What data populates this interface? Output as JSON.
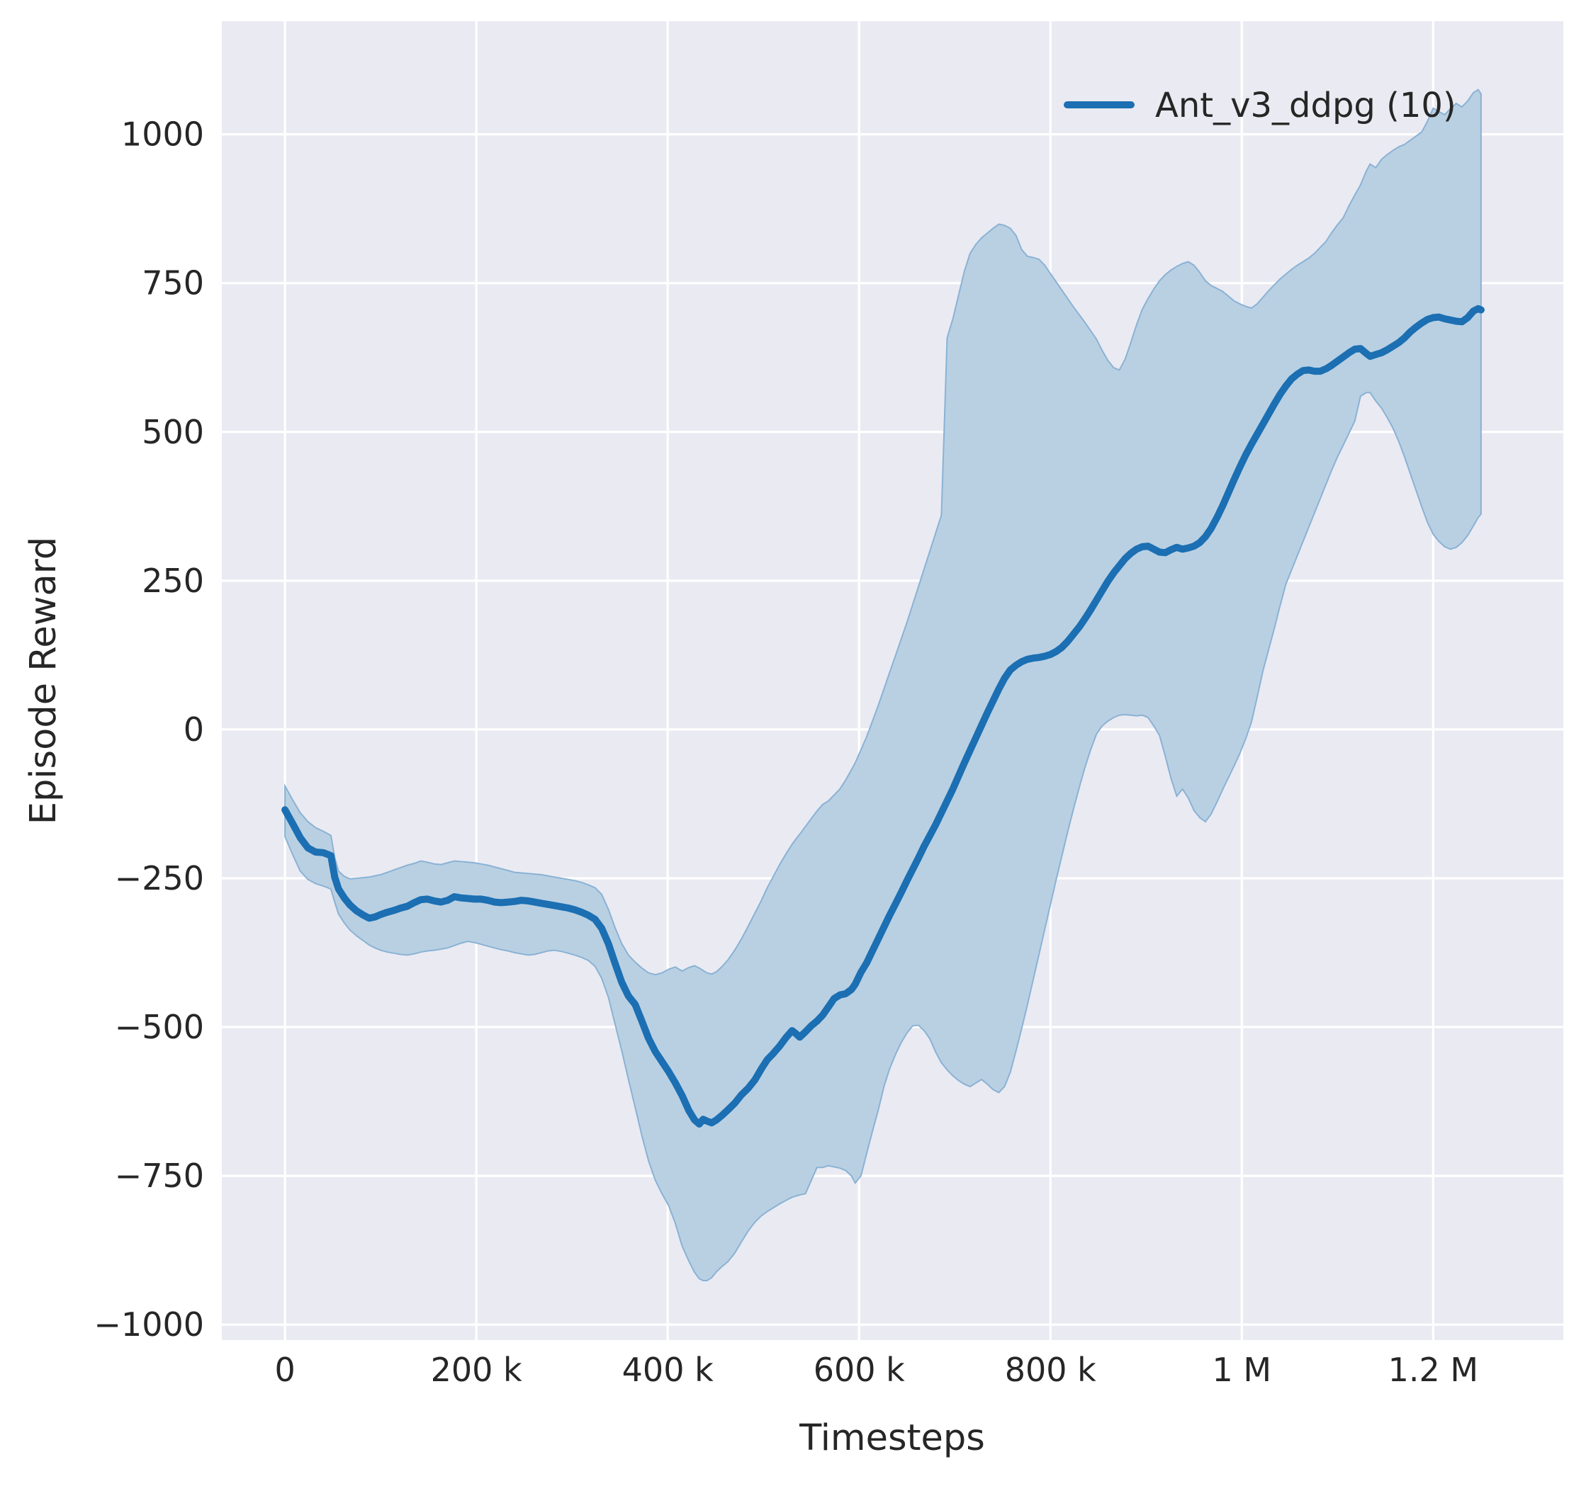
{
  "colors": {
    "line": "#1b6fb2",
    "band_fill": "#b9d0e3",
    "band_edge": "#8ab2d4",
    "plot_bg": "#eaeaf2",
    "grid": "#ffffff",
    "text": "#262626"
  },
  "chart_data": {
    "type": "line",
    "title": "",
    "xlabel": "Timesteps",
    "ylabel": "Episode Reward",
    "legend_position": "upper right",
    "grid": true,
    "series": [
      {
        "name": "Ant_v3_ddpg (10)",
        "color": "#1b6fb2",
        "has_confidence_band": true
      }
    ],
    "x_unit_note": "x values in thousands of timesteps",
    "x_ticks": {
      "values": [
        0,
        200,
        400,
        600,
        800,
        1000,
        1200
      ],
      "labels": [
        "0",
        "200 k",
        "400 k",
        "600 k",
        "800 k",
        "1 M",
        "1.2 M"
      ]
    },
    "y_ticks": {
      "values": [
        -1000,
        -750,
        -500,
        -250,
        0,
        250,
        500,
        750,
        1000
      ],
      "labels": [
        "−1000",
        "−750",
        "−500",
        "−250",
        "0",
        "250",
        "500",
        "750",
        "1000"
      ]
    },
    "xlim_k": [
      -66,
      1336
    ],
    "ylim": [
      -1026,
      1190
    ],
    "points_format": [
      "x_k",
      "mean",
      "band_low",
      "band_high"
    ],
    "points": [
      [
        0,
        -135,
        -180,
        -95
      ],
      [
        8,
        -158,
        -210,
        -118
      ],
      [
        16,
        -182,
        -238,
        -140
      ],
      [
        24,
        -199,
        -252,
        -155
      ],
      [
        32,
        -206,
        -259,
        -165
      ],
      [
        40,
        -207,
        -263,
        -171
      ],
      [
        48,
        -212,
        -268,
        -178
      ],
      [
        52,
        -248,
        -290,
        -215
      ],
      [
        56,
        -268,
        -310,
        -238
      ],
      [
        62,
        -283,
        -325,
        -247
      ],
      [
        68,
        -295,
        -337,
        -251
      ],
      [
        75,
        -305,
        -347,
        -250
      ],
      [
        82,
        -312,
        -355,
        -249
      ],
      [
        88,
        -317,
        -362,
        -248
      ],
      [
        94,
        -315,
        -367,
        -246
      ],
      [
        100,
        -311,
        -371,
        -244
      ],
      [
        107,
        -307,
        -374,
        -240
      ],
      [
        114,
        -304,
        -376,
        -236
      ],
      [
        121,
        -300,
        -378,
        -232
      ],
      [
        128,
        -297,
        -379,
        -228
      ],
      [
        135,
        -291,
        -377,
        -225
      ],
      [
        142,
        -286,
        -374,
        -221
      ],
      [
        149,
        -285,
        -372,
        -223
      ],
      [
        156,
        -288,
        -371,
        -226
      ],
      [
        163,
        -290,
        -369,
        -227
      ],
      [
        170,
        -287,
        -367,
        -224
      ],
      [
        177,
        -281,
        -363,
        -221
      ],
      [
        184,
        -283,
        -359,
        -222
      ],
      [
        191,
        -284,
        -356,
        -223
      ],
      [
        198,
        -285,
        -358,
        -224
      ],
      [
        205,
        -285,
        -361,
        -226
      ],
      [
        212,
        -287,
        -364,
        -228
      ],
      [
        219,
        -290,
        -367,
        -231
      ],
      [
        226,
        -291,
        -370,
        -234
      ],
      [
        233,
        -290,
        -372,
        -237
      ],
      [
        240,
        -289,
        -375,
        -240
      ],
      [
        247,
        -287,
        -377,
        -241
      ],
      [
        254,
        -288,
        -379,
        -242
      ],
      [
        261,
        -290,
        -378,
        -243
      ],
      [
        268,
        -292,
        -375,
        -244
      ],
      [
        275,
        -294,
        -372,
        -246
      ],
      [
        282,
        -296,
        -371,
        -248
      ],
      [
        289,
        -298,
        -373,
        -250
      ],
      [
        296,
        -300,
        -376,
        -252
      ],
      [
        303,
        -303,
        -379,
        -254
      ],
      [
        310,
        -307,
        -383,
        -257
      ],
      [
        317,
        -312,
        -388,
        -261
      ],
      [
        324,
        -319,
        -398,
        -266
      ],
      [
        331,
        -334,
        -418,
        -277
      ],
      [
        338,
        -360,
        -450,
        -302
      ],
      [
        345,
        -393,
        -495,
        -333
      ],
      [
        352,
        -425,
        -540,
        -360
      ],
      [
        359,
        -448,
        -588,
        -379
      ],
      [
        366,
        -462,
        -635,
        -391
      ],
      [
        373,
        -490,
        -682,
        -401
      ],
      [
        380,
        -519,
        -725,
        -409
      ],
      [
        387,
        -541,
        -757,
        -412
      ],
      [
        394,
        -558,
        -780,
        -409
      ],
      [
        401,
        -575,
        -800,
        -403
      ],
      [
        408,
        -594,
        -830,
        -399
      ],
      [
        415,
        -615,
        -868,
        -406
      ],
      [
        422,
        -640,
        -893,
        -400
      ],
      [
        428,
        -656,
        -912,
        -397
      ],
      [
        433,
        -663,
        -923,
        -401
      ],
      [
        437,
        -655,
        -926,
        -405
      ],
      [
        441,
        -658,
        -926,
        -409
      ],
      [
        446,
        -661,
        -921,
        -411
      ],
      [
        451,
        -656,
        -911,
        -407
      ],
      [
        457,
        -648,
        -902,
        -398
      ],
      [
        463,
        -639,
        -894,
        -387
      ],
      [
        470,
        -628,
        -880,
        -371
      ],
      [
        477,
        -614,
        -861,
        -352
      ],
      [
        484,
        -603,
        -843,
        -331
      ],
      [
        491,
        -589,
        -828,
        -309
      ],
      [
        498,
        -570,
        -817,
        -287
      ],
      [
        504,
        -555,
        -810,
        -266
      ],
      [
        510,
        -545,
        -804,
        -248
      ],
      [
        517,
        -532,
        -797,
        -227
      ],
      [
        524,
        -517,
        -791,
        -208
      ],
      [
        530,
        -506,
        -786,
        -193
      ],
      [
        534,
        -511,
        -784,
        -184
      ],
      [
        538,
        -517,
        -782,
        -176
      ],
      [
        544,
        -508,
        -780,
        -163
      ],
      [
        550,
        -498,
        -758,
        -150
      ],
      [
        556,
        -490,
        -736,
        -137
      ],
      [
        562,
        -480,
        -736,
        -126
      ],
      [
        568,
        -466,
        -733,
        -120
      ],
      [
        574,
        -452,
        -735,
        -110
      ],
      [
        580,
        -446,
        -737,
        -100
      ],
      [
        586,
        -444,
        -741,
        -85
      ],
      [
        592,
        -437,
        -750,
        -68
      ],
      [
        596,
        -428,
        -762,
        -56
      ],
      [
        602,
        -408,
        -750,
        -34
      ],
      [
        608,
        -392,
        -712,
        -12
      ],
      [
        614,
        -372,
        -675,
        14
      ],
      [
        620,
        -352,
        -640,
        40
      ],
      [
        626,
        -332,
        -600,
        68
      ],
      [
        632,
        -312,
        -570,
        96
      ],
      [
        638,
        -293,
        -546,
        124
      ],
      [
        644,
        -274,
        -526,
        152
      ],
      [
        650,
        -254,
        -510,
        180
      ],
      [
        656,
        -235,
        -498,
        210
      ],
      [
        662,
        -216,
        -497,
        240
      ],
      [
        668,
        -196,
        -506,
        270
      ],
      [
        674,
        -178,
        -520,
        300
      ],
      [
        680,
        -160,
        -542,
        330
      ],
      [
        686,
        -140,
        -560,
        360
      ],
      [
        692,
        -120,
        -572,
        658
      ],
      [
        698,
        -100,
        -582,
        690
      ],
      [
        704,
        -78,
        -590,
        730
      ],
      [
        710,
        -56,
        -596,
        770
      ],
      [
        716,
        -35,
        -600,
        800
      ],
      [
        722,
        -14,
        -594,
        815
      ],
      [
        728,
        7,
        -588,
        826
      ],
      [
        734,
        28,
        -596,
        834
      ],
      [
        740,
        48,
        -605,
        842
      ],
      [
        746,
        68,
        -610,
        849
      ],
      [
        752,
        86,
        -600,
        847
      ],
      [
        758,
        100,
        -576,
        842
      ],
      [
        764,
        108,
        -540,
        830
      ],
      [
        770,
        114,
        -502,
        806
      ],
      [
        776,
        118,
        -462,
        795
      ],
      [
        782,
        120,
        -420,
        793
      ],
      [
        788,
        121,
        -378,
        790
      ],
      [
        794,
        123,
        -336,
        780
      ],
      [
        800,
        126,
        -294,
        766
      ],
      [
        806,
        131,
        -252,
        752
      ],
      [
        812,
        138,
        -212,
        738
      ],
      [
        818,
        148,
        -172,
        724
      ],
      [
        824,
        160,
        -134,
        710
      ],
      [
        830,
        172,
        -98,
        697
      ],
      [
        836,
        186,
        -64,
        684
      ],
      [
        842,
        201,
        -34,
        670
      ],
      [
        848,
        217,
        -8,
        656
      ],
      [
        854,
        233,
        6,
        637
      ],
      [
        860,
        249,
        14,
        620
      ],
      [
        866,
        263,
        20,
        608
      ],
      [
        872,
        275,
        24,
        604
      ],
      [
        878,
        287,
        25,
        622
      ],
      [
        884,
        296,
        24,
        650
      ],
      [
        890,
        303,
        23,
        680
      ],
      [
        896,
        307,
        24,
        706
      ],
      [
        902,
        308,
        20,
        724
      ],
      [
        908,
        303,
        6,
        740
      ],
      [
        914,
        298,
        -10,
        754
      ],
      [
        920,
        297,
        -45,
        764
      ],
      [
        926,
        302,
        -82,
        772
      ],
      [
        932,
        306,
        -112,
        778
      ],
      [
        938,
        303,
        -100,
        783
      ],
      [
        944,
        305,
        -115,
        786
      ],
      [
        950,
        308,
        -136,
        780
      ],
      [
        956,
        314,
        -148,
        768
      ],
      [
        962,
        324,
        -155,
        754
      ],
      [
        968,
        338,
        -142,
        746
      ],
      [
        974,
        356,
        -122,
        741
      ],
      [
        980,
        376,
        -101,
        736
      ],
      [
        986,
        398,
        -81,
        728
      ],
      [
        992,
        420,
        -61,
        720
      ],
      [
        998,
        441,
        -40,
        715
      ],
      [
        1004,
        461,
        -16,
        711
      ],
      [
        1010,
        479,
        12,
        708
      ],
      [
        1016,
        496,
        54,
        715
      ],
      [
        1022,
        513,
        98,
        726
      ],
      [
        1028,
        530,
        134,
        737
      ],
      [
        1034,
        547,
        170,
        747
      ],
      [
        1040,
        563,
        208,
        757
      ],
      [
        1046,
        577,
        244,
        765
      ],
      [
        1052,
        589,
        268,
        773
      ],
      [
        1058,
        597,
        292,
        780
      ],
      [
        1064,
        603,
        316,
        786
      ],
      [
        1070,
        604,
        340,
        792
      ],
      [
        1076,
        602,
        364,
        800
      ],
      [
        1082,
        602,
        388,
        810
      ],
      [
        1088,
        606,
        412,
        820
      ],
      [
        1094,
        612,
        436,
        835
      ],
      [
        1100,
        619,
        458,
        848
      ],
      [
        1106,
        626,
        478,
        860
      ],
      [
        1112,
        633,
        498,
        880
      ],
      [
        1118,
        639,
        518,
        898
      ],
      [
        1124,
        640,
        560,
        915
      ],
      [
        1130,
        632,
        566,
        938
      ],
      [
        1134,
        627,
        566,
        950
      ],
      [
        1140,
        630,
        552,
        944
      ],
      [
        1146,
        633,
        540,
        958
      ],
      [
        1152,
        638,
        524,
        966
      ],
      [
        1158,
        644,
        506,
        973
      ],
      [
        1164,
        650,
        484,
        979
      ],
      [
        1170,
        658,
        458,
        983
      ],
      [
        1176,
        668,
        430,
        990
      ],
      [
        1182,
        676,
        402,
        997
      ],
      [
        1188,
        683,
        374,
        1004
      ],
      [
        1194,
        689,
        348,
        1022
      ],
      [
        1200,
        692,
        328,
        1044
      ],
      [
        1206,
        693,
        316,
        1038
      ],
      [
        1212,
        690,
        307,
        1033
      ],
      [
        1218,
        688,
        303,
        1043
      ],
      [
        1224,
        686,
        306,
        1052
      ],
      [
        1230,
        685,
        314,
        1046
      ],
      [
        1236,
        692,
        326,
        1056
      ],
      [
        1242,
        703,
        342,
        1070
      ],
      [
        1247,
        707,
        356,
        1075
      ],
      [
        1250,
        705,
        362,
        1068
      ]
    ]
  },
  "legend": {
    "entries": [
      {
        "label": "Ant_v3_ddpg (10)"
      }
    ]
  },
  "axis": {
    "x_label": "Timesteps",
    "y_label": "Episode Reward"
  }
}
